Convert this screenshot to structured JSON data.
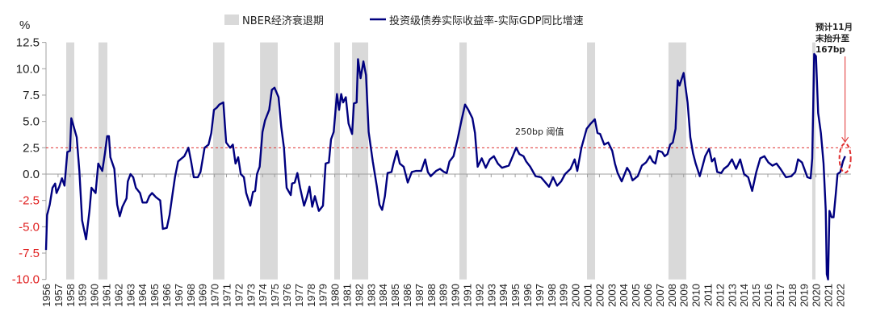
{
  "chart_data": {
    "type": "line",
    "title": "",
    "ylabel": "%",
    "xlabel": "",
    "ylim": [
      -10.0,
      12.5
    ],
    "yticks": [
      "12.5",
      "10.0",
      "7.5",
      "5.0",
      "2.5",
      "0.0",
      "-2.5",
      "-5.0",
      "-7.5",
      "-10.0"
    ],
    "ytick_values": [
      12.5,
      10,
      7.5,
      5,
      2.5,
      0,
      -2.5,
      -5,
      -7.5,
      -10
    ],
    "xlim": [
      1956,
      2022.9
    ],
    "xticks": [
      "1956",
      "1957",
      "1958",
      "1959",
      "1960",
      "1961",
      "1962",
      "1963",
      "1964",
      "1965",
      "1966",
      "1967",
      "1968",
      "1969",
      "1970",
      "1971",
      "1972",
      "1973",
      "1974",
      "1975",
      "1976",
      "1977",
      "1978",
      "1979",
      "1980",
      "1981",
      "1982",
      "1983",
      "1984",
      "1985",
      "1986",
      "1987",
      "1988",
      "1989",
      "1990",
      "1991",
      "1992",
      "1993",
      "1994",
      "1995",
      "1996",
      "1997",
      "1998",
      "1999",
      "2000",
      "2001",
      "2002",
      "2003",
      "2004",
      "2005",
      "2006",
      "2007",
      "2008",
      "2009",
      "2010",
      "2011",
      "2012",
      "2013",
      "2014",
      "2015",
      "2016",
      "2017",
      "2018",
      "2019",
      "2020",
      "2021",
      "2022"
    ],
    "grid": false,
    "legend_placement": "top-center",
    "legend": [
      {
        "label": "NBER经济衰退期",
        "kind": "band",
        "color": "#d9d9d9"
      },
      {
        "label": "投资级债券实际收益率-实际GDP同比增速",
        "kind": "line",
        "color": "#00007f"
      }
    ],
    "recessions": [
      [
        1957.68,
        1958.35
      ],
      [
        1960.36,
        1961.1
      ],
      [
        1969.89,
        1970.83
      ],
      [
        1973.79,
        1975.26
      ],
      [
        1979.96,
        1980.43
      ],
      [
        1981.44,
        1982.78
      ],
      [
        1990.36,
        1990.97
      ],
      [
        2000.97,
        2001.64
      ],
      [
        2007.74,
        2009.22
      ],
      [
        2019.69,
        2019.96
      ]
    ],
    "threshold": {
      "value": 2.5,
      "label": "250bp 阈值",
      "color": "#e03030"
    },
    "annotation": {
      "lines": [
        "预计11月",
        "末抬升至",
        "167bp"
      ],
      "target_x": 2022.42,
      "target_y": 1.67,
      "color": "#e03030"
    },
    "series": [
      {
        "color": "#00007f",
        "points": [
          [
            1956.0,
            -7.2
          ],
          [
            1956.09,
            -3.9
          ],
          [
            1956.31,
            -2.9
          ],
          [
            1956.54,
            -1.3
          ],
          [
            1956.76,
            -0.9
          ],
          [
            1956.87,
            -1.8
          ],
          [
            1957.1,
            -1.2
          ],
          [
            1957.32,
            -0.4
          ],
          [
            1957.54,
            -1.1
          ],
          [
            1957.77,
            2.1
          ],
          [
            1957.99,
            2.2
          ],
          [
            1958.1,
            5.3
          ],
          [
            1958.33,
            4.4
          ],
          [
            1958.55,
            3.5
          ],
          [
            1958.77,
            0.3
          ],
          [
            1959.0,
            -4.4
          ],
          [
            1959.33,
            -6.2
          ],
          [
            1959.61,
            -3.5
          ],
          [
            1959.78,
            -1.3
          ],
          [
            1960.12,
            -1.8
          ],
          [
            1960.34,
            1.0
          ],
          [
            1960.68,
            0.3
          ],
          [
            1960.9,
            2.0
          ],
          [
            1961.08,
            3.6
          ],
          [
            1961.23,
            3.6
          ],
          [
            1961.35,
            1.6
          ],
          [
            1961.68,
            0.5
          ],
          [
            1961.91,
            -2.9
          ],
          [
            1962.13,
            -4.0
          ],
          [
            1962.35,
            -3.1
          ],
          [
            1962.69,
            -2.3
          ],
          [
            1962.8,
            -0.7
          ],
          [
            1963.02,
            0.0
          ],
          [
            1963.25,
            -0.3
          ],
          [
            1963.47,
            -1.3
          ],
          [
            1963.81,
            -1.8
          ],
          [
            1964.03,
            -2.7
          ],
          [
            1964.37,
            -2.7
          ],
          [
            1964.59,
            -2.1
          ],
          [
            1964.81,
            -1.8
          ],
          [
            1965.15,
            -2.2
          ],
          [
            1965.49,
            -2.5
          ],
          [
            1965.71,
            -5.2
          ],
          [
            1966.04,
            -5.1
          ],
          [
            1966.27,
            -3.9
          ],
          [
            1966.49,
            -2.1
          ],
          [
            1966.72,
            -0.3
          ],
          [
            1966.98,
            1.2
          ],
          [
            1967.28,
            1.5
          ],
          [
            1967.5,
            1.7
          ],
          [
            1967.84,
            2.5
          ],
          [
            1968.06,
            1.2
          ],
          [
            1968.28,
            -0.3
          ],
          [
            1968.62,
            -0.3
          ],
          [
            1968.84,
            0.2
          ],
          [
            1969.18,
            2.5
          ],
          [
            1969.51,
            2.8
          ],
          [
            1969.74,
            3.9
          ],
          [
            1969.96,
            6.1
          ],
          [
            1970.19,
            6.3
          ],
          [
            1970.41,
            6.6
          ],
          [
            1970.74,
            6.8
          ],
          [
            1970.97,
            3.0
          ],
          [
            1971.3,
            2.5
          ],
          [
            1971.53,
            2.8
          ],
          [
            1971.75,
            1.0
          ],
          [
            1971.97,
            1.6
          ],
          [
            1972.19,
            0.0
          ],
          [
            1972.45,
            -0.3
          ],
          [
            1972.64,
            -1.8
          ],
          [
            1972.98,
            -3.0
          ],
          [
            1973.2,
            -1.7
          ],
          [
            1973.38,
            -1.6
          ],
          [
            1973.54,
            0.0
          ],
          [
            1973.76,
            0.7
          ],
          [
            1973.99,
            4.0
          ],
          [
            1974.21,
            5.1
          ],
          [
            1974.55,
            6.1
          ],
          [
            1974.77,
            8.0
          ],
          [
            1974.99,
            8.2
          ],
          [
            1975.33,
            7.3
          ],
          [
            1975.55,
            4.5
          ],
          [
            1975.78,
            2.5
          ],
          [
            1976.0,
            -1.3
          ],
          [
            1976.34,
            -2.0
          ],
          [
            1976.45,
            -0.9
          ],
          [
            1976.67,
            -0.8
          ],
          [
            1976.89,
            0.1
          ],
          [
            1977.12,
            -1.3
          ],
          [
            1977.45,
            -3.0
          ],
          [
            1977.68,
            -2.2
          ],
          [
            1977.9,
            -1.2
          ],
          [
            1978.13,
            -3.1
          ],
          [
            1978.35,
            -2.1
          ],
          [
            1978.68,
            -3.5
          ],
          [
            1979.02,
            -3.0
          ],
          [
            1979.24,
            1.0
          ],
          [
            1979.51,
            1.1
          ],
          [
            1979.69,
            3.3
          ],
          [
            1979.91,
            4.0
          ],
          [
            1980.18,
            7.6
          ],
          [
            1980.36,
            6.1
          ],
          [
            1980.54,
            7.6
          ],
          [
            1980.7,
            6.8
          ],
          [
            1980.92,
            7.3
          ],
          [
            1981.15,
            4.8
          ],
          [
            1981.44,
            3.8
          ],
          [
            1981.59,
            6.7
          ],
          [
            1981.82,
            6.8
          ],
          [
            1981.93,
            10.9
          ],
          [
            1982.15,
            9.1
          ],
          [
            1982.38,
            10.7
          ],
          [
            1982.6,
            9.4
          ],
          [
            1982.82,
            4.0
          ],
          [
            1983.16,
            1.2
          ],
          [
            1983.49,
            -1.1
          ],
          [
            1983.72,
            -2.9
          ],
          [
            1983.94,
            -3.4
          ],
          [
            1984.17,
            -2.1
          ],
          [
            1984.39,
            0.1
          ],
          [
            1984.72,
            0.2
          ],
          [
            1984.88,
            1.0
          ],
          [
            1985.17,
            2.2
          ],
          [
            1985.4,
            1.0
          ],
          [
            1985.73,
            0.7
          ],
          [
            1986.07,
            -0.8
          ],
          [
            1986.4,
            0.2
          ],
          [
            1986.74,
            0.3
          ],
          [
            1987.19,
            0.3
          ],
          [
            1987.52,
            1.4
          ],
          [
            1987.74,
            0.2
          ],
          [
            1987.97,
            -0.2
          ],
          [
            1988.42,
            0.3
          ],
          [
            1988.75,
            0.5
          ],
          [
            1989.09,
            0.2
          ],
          [
            1989.31,
            0.1
          ],
          [
            1989.54,
            1.2
          ],
          [
            1989.87,
            1.7
          ],
          [
            1990.21,
            3.3
          ],
          [
            1990.54,
            5.1
          ],
          [
            1990.83,
            6.6
          ],
          [
            1991.1,
            6.1
          ],
          [
            1991.44,
            5.3
          ],
          [
            1991.66,
            3.9
          ],
          [
            1991.88,
            0.7
          ],
          [
            1992.22,
            1.5
          ],
          [
            1992.55,
            0.6
          ],
          [
            1992.89,
            1.4
          ],
          [
            1993.23,
            1.7
          ],
          [
            1993.56,
            1.0
          ],
          [
            1993.9,
            0.6
          ],
          [
            1994.46,
            0.8
          ],
          [
            1994.79,
            1.7
          ],
          [
            1995.08,
            2.5
          ],
          [
            1995.35,
            1.9
          ],
          [
            1995.69,
            1.7
          ],
          [
            1995.91,
            1.2
          ],
          [
            1996.25,
            0.7
          ],
          [
            1996.69,
            -0.2
          ],
          [
            1997.14,
            -0.3
          ],
          [
            1997.81,
            -1.2
          ],
          [
            1998.15,
            -0.3
          ],
          [
            1998.48,
            -1.1
          ],
          [
            1998.82,
            -0.7
          ],
          [
            1999.15,
            0.0
          ],
          [
            1999.6,
            0.5
          ],
          [
            1999.94,
            1.4
          ],
          [
            2000.16,
            0.3
          ],
          [
            2000.5,
            2.5
          ],
          [
            2000.94,
            4.3
          ],
          [
            2001.28,
            4.8
          ],
          [
            2001.62,
            5.2
          ],
          [
            2001.84,
            3.9
          ],
          [
            2002.06,
            3.8
          ],
          [
            2002.4,
            2.8
          ],
          [
            2002.73,
            3.0
          ],
          [
            2003.07,
            2.2
          ],
          [
            2003.29,
            1.0
          ],
          [
            2003.52,
            0.1
          ],
          [
            2003.85,
            -0.7
          ],
          [
            2004.3,
            0.6
          ],
          [
            2004.52,
            0.2
          ],
          [
            2004.75,
            -0.6
          ],
          [
            2005.19,
            -0.2
          ],
          [
            2005.53,
            0.8
          ],
          [
            2005.87,
            1.1
          ],
          [
            2006.2,
            1.7
          ],
          [
            2006.42,
            1.2
          ],
          [
            2006.65,
            1.0
          ],
          [
            2006.87,
            2.2
          ],
          [
            2007.21,
            2.1
          ],
          [
            2007.43,
            1.7
          ],
          [
            2007.66,
            1.9
          ],
          [
            2007.88,
            2.8
          ],
          [
            2008.1,
            3.0
          ],
          [
            2008.33,
            4.3
          ],
          [
            2008.51,
            8.9
          ],
          [
            2008.66,
            8.4
          ],
          [
            2009.0,
            9.6
          ],
          [
            2009.33,
            6.8
          ],
          [
            2009.56,
            3.5
          ],
          [
            2009.78,
            2.0
          ],
          [
            2010.0,
            1.0
          ],
          [
            2010.34,
            -0.2
          ],
          [
            2010.56,
            0.7
          ],
          [
            2010.79,
            1.7
          ],
          [
            2011.12,
            2.4
          ],
          [
            2011.35,
            1.2
          ],
          [
            2011.57,
            1.5
          ],
          [
            2011.79,
            0.2
          ],
          [
            2012.13,
            0.1
          ],
          [
            2012.35,
            0.5
          ],
          [
            2012.69,
            0.8
          ],
          [
            2013.02,
            1.4
          ],
          [
            2013.36,
            0.5
          ],
          [
            2013.7,
            1.4
          ],
          [
            2014.03,
            0.0
          ],
          [
            2014.37,
            -0.3
          ],
          [
            2014.7,
            -1.6
          ],
          [
            2015.04,
            0.2
          ],
          [
            2015.37,
            1.5
          ],
          [
            2015.71,
            1.7
          ],
          [
            2016.05,
            1.1
          ],
          [
            2016.38,
            0.8
          ],
          [
            2016.72,
            1.0
          ],
          [
            2017.05,
            0.5
          ],
          [
            2017.5,
            -0.3
          ],
          [
            2017.95,
            -0.2
          ],
          [
            2018.28,
            0.2
          ],
          [
            2018.51,
            1.4
          ],
          [
            2018.84,
            1.1
          ],
          [
            2019.29,
            -0.3
          ],
          [
            2019.56,
            -0.4
          ],
          [
            2019.69,
            1.5
          ],
          [
            2019.85,
            11.4
          ],
          [
            2020.0,
            11.2
          ],
          [
            2020.18,
            5.8
          ],
          [
            2020.41,
            3.9
          ],
          [
            2020.63,
            1.0
          ],
          [
            2020.81,
            -3.4
          ],
          [
            2020.9,
            -9.5
          ],
          [
            2021.01,
            -10.0
          ],
          [
            2021.12,
            -3.5
          ],
          [
            2021.3,
            -4.1
          ],
          [
            2021.46,
            -4.1
          ],
          [
            2021.64,
            -2.0
          ],
          [
            2021.79,
            0.0
          ],
          [
            2022.02,
            0.2
          ],
          [
            2022.24,
            1.2
          ],
          [
            2022.42,
            1.7
          ]
        ]
      }
    ]
  }
}
